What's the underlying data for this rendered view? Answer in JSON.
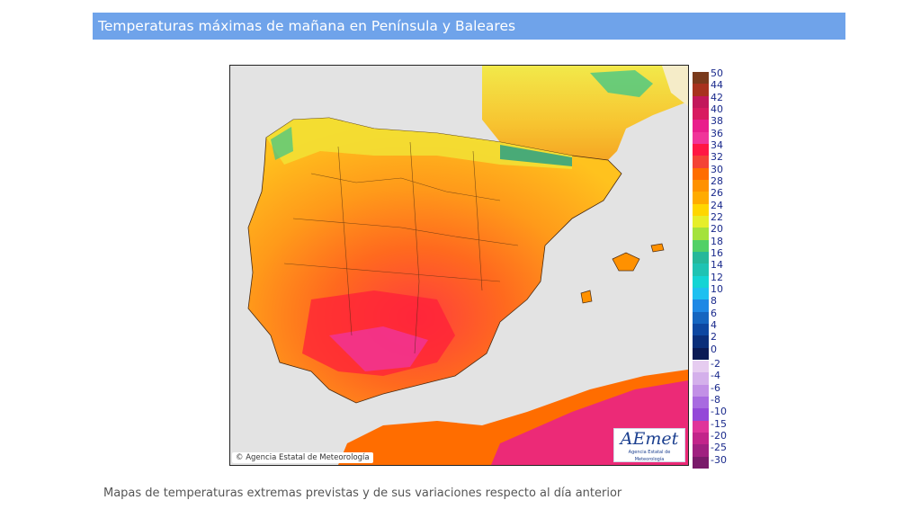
{
  "header": {
    "title": "Temperaturas máximas de mañana en Península y Baleares"
  },
  "map": {
    "copyright": "© Agencia Estatal de Meteorología",
    "logo_text": "AEmet",
    "logo_subtext": "Agencia Estatal de Meteorología"
  },
  "legend": {
    "upper": [
      {
        "label": "50",
        "color": "#7a3a1c"
      },
      {
        "label": "44",
        "color": "#a8321e"
      },
      {
        "label": "42",
        "color": "#c2185b"
      },
      {
        "label": "40",
        "color": "#d81b60"
      },
      {
        "label": "38",
        "color": "#e91e8c"
      },
      {
        "label": "36",
        "color": "#f0359a"
      },
      {
        "label": "34",
        "color": "#ff1744"
      },
      {
        "label": "32",
        "color": "#f44336"
      },
      {
        "label": "30",
        "color": "#ff6d00"
      },
      {
        "label": "28",
        "color": "#ff9100"
      },
      {
        "label": "26",
        "color": "#ffab00"
      },
      {
        "label": "24",
        "color": "#ffd600"
      },
      {
        "label": "22",
        "color": "#e6ee2a"
      },
      {
        "label": "20",
        "color": "#a4e23c"
      },
      {
        "label": "18",
        "color": "#52d066"
      },
      {
        "label": "16",
        "color": "#26b89a"
      },
      {
        "label": "14",
        "color": "#1fc3b3"
      },
      {
        "label": "12",
        "color": "#14d4d4"
      },
      {
        "label": "10",
        "color": "#1ec0f0"
      },
      {
        "label": "8",
        "color": "#1e88e5"
      },
      {
        "label": "6",
        "color": "#1565c0"
      },
      {
        "label": "4",
        "color": "#0d47a1"
      },
      {
        "label": "2",
        "color": "#0a2e7a"
      },
      {
        "label": "0",
        "color": "#0a1a55"
      }
    ],
    "lower": [
      {
        "label": "-2",
        "color": "#e6ccf0"
      },
      {
        "label": "-4",
        "color": "#d4b0eb"
      },
      {
        "label": "-6",
        "color": "#c290e6"
      },
      {
        "label": "-8",
        "color": "#a86ae0"
      },
      {
        "label": "-10",
        "color": "#9448d8"
      },
      {
        "label": "-15",
        "color": "#e0349a"
      },
      {
        "label": "-20",
        "color": "#c2248a"
      },
      {
        "label": "-25",
        "color": "#a02080"
      },
      {
        "label": "-30",
        "color": "#7a1a6a"
      }
    ]
  },
  "footer": {
    "caption": "Mapas de temperaturas extremas previstas y de sus variaciones respecto al día anterior"
  }
}
